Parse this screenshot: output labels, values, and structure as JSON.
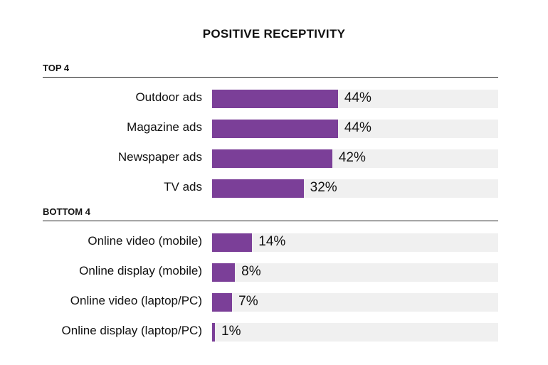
{
  "chart_data": {
    "type": "bar",
    "orientation": "horizontal",
    "title": "POSITIVE RECEPTIVITY",
    "bar_color": "#7b3f98",
    "track_color": "#f0f0f0",
    "xlim": [
      0,
      100
    ],
    "groups": [
      {
        "label": "TOP 4",
        "categories": [
          "Outdoor ads",
          "Magazine ads",
          "Newspaper ads",
          "TV ads"
        ],
        "values": [
          44,
          44,
          42,
          32
        ],
        "value_labels": [
          "44%",
          "44%",
          "42%",
          "32%"
        ]
      },
      {
        "label": "BOTTOM 4",
        "categories": [
          "Online video (mobile)",
          "Online display (mobile)",
          "Online video (laptop/PC)",
          "Online display (laptop/PC)"
        ],
        "values": [
          14,
          8,
          7,
          1
        ],
        "value_labels": [
          "14%",
          "8%",
          "7%",
          "1%"
        ]
      }
    ]
  }
}
